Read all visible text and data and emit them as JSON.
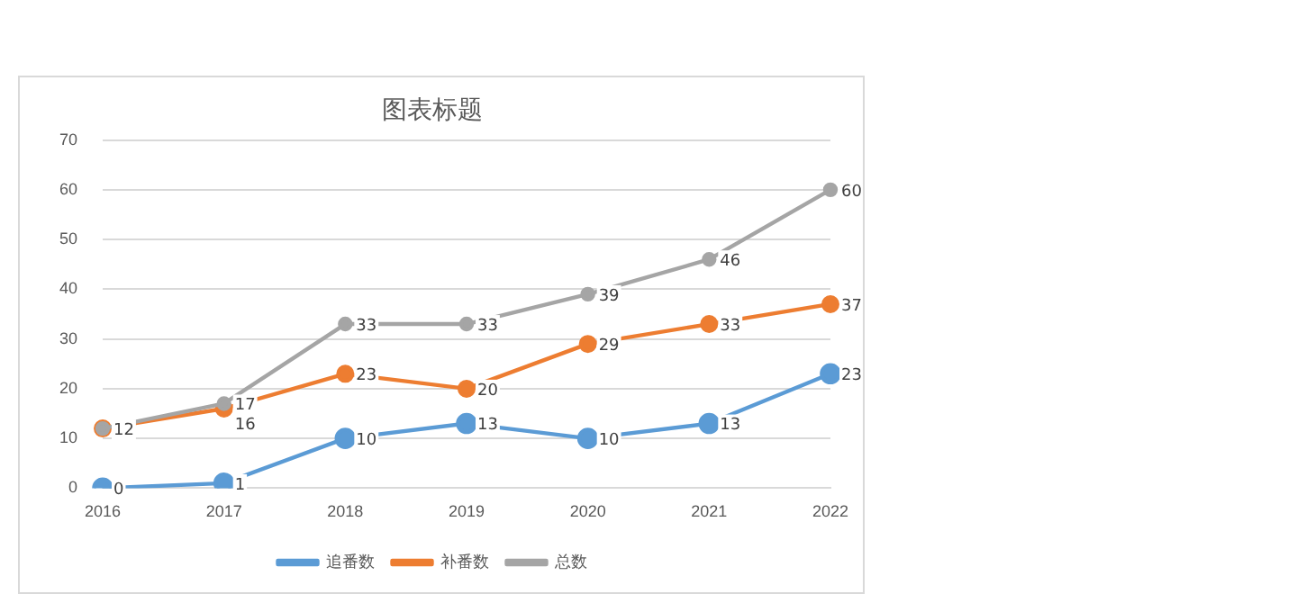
{
  "chart_data": {
    "type": "line",
    "title": "图表标题",
    "categories": [
      "2016",
      "2017",
      "2018",
      "2019",
      "2020",
      "2021",
      "2022"
    ],
    "series": [
      {
        "name": "追番数",
        "color": "#5b9bd5",
        "values": [
          0,
          1,
          10,
          13,
          10,
          13,
          23
        ],
        "value_labels": [
          "0",
          "1",
          "10",
          "13",
          "10",
          "13",
          "23"
        ]
      },
      {
        "name": "补番数",
        "color": "#ed7d31",
        "values": [
          12,
          16,
          23,
          20,
          29,
          33,
          37
        ],
        "value_labels": [
          "12",
          "16",
          "23",
          "20",
          "29",
          "33",
          "37"
        ]
      },
      {
        "name": "总数",
        "color": "#a5a5a5",
        "values": [
          12,
          17,
          33,
          33,
          39,
          46,
          60
        ],
        "value_labels": [
          null,
          "17",
          "33",
          "33",
          "39",
          "46",
          "60"
        ]
      }
    ],
    "ylim": [
      0,
      70
    ],
    "yticks": [
      0,
      10,
      20,
      30,
      40,
      50,
      60,
      70
    ],
    "grid": "y",
    "legend": "bottom",
    "marker": "circle",
    "line_style": "solid"
  }
}
